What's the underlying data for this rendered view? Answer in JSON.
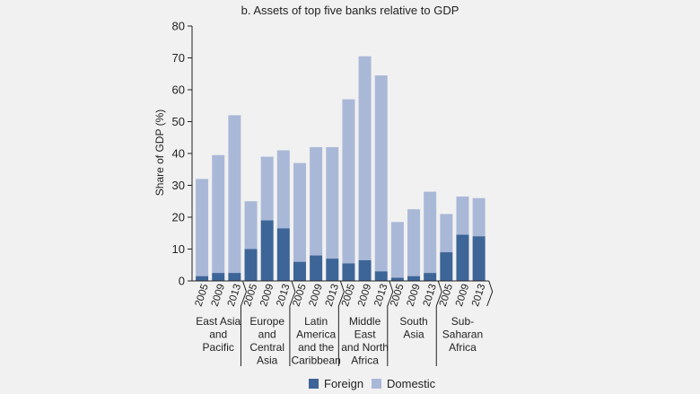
{
  "chart_data": {
    "type": "bar",
    "stacked": true,
    "title": "b. Assets of top five banks relative to GDP",
    "ylabel": "Share of GDP (%)",
    "xlabel": "",
    "ylim": [
      0,
      80
    ],
    "yticks": [
      0,
      10,
      20,
      30,
      40,
      50,
      60,
      70,
      80
    ],
    "grid": false,
    "legend_position": "bottom-center",
    "colors": {
      "foreign": "#3d6597",
      "domestic": "#aab8d8",
      "axis": "#222222"
    },
    "groups": [
      {
        "label_lines": [
          "East Asia",
          "and",
          "Pacific"
        ],
        "years": [
          "2005",
          "2009",
          "2013"
        ],
        "foreign": [
          1.5,
          2.5,
          2.5
        ],
        "total": [
          32,
          39.5,
          52
        ]
      },
      {
        "label_lines": [
          "Europe",
          "and",
          "Central",
          "Asia"
        ],
        "years": [
          "2005",
          "2009",
          "2013"
        ],
        "foreign": [
          10,
          19,
          16.5
        ],
        "total": [
          25,
          39,
          41
        ]
      },
      {
        "label_lines": [
          "Latin",
          "America",
          "and the",
          "Caribbean"
        ],
        "years": [
          "2005",
          "2009",
          "2013"
        ],
        "foreign": [
          6,
          8,
          7
        ],
        "total": [
          37,
          42,
          42
        ]
      },
      {
        "label_lines": [
          "Middle",
          "East",
          "and North",
          "Africa"
        ],
        "years": [
          "2005",
          "2009",
          "2013"
        ],
        "foreign": [
          5.5,
          6.5,
          3
        ],
        "total": [
          57,
          70.5,
          64.5
        ]
      },
      {
        "label_lines": [
          "South",
          "Asia"
        ],
        "years": [
          "2005",
          "2009",
          "2013"
        ],
        "foreign": [
          1,
          1.5,
          2.5
        ],
        "total": [
          18.5,
          22.5,
          28
        ]
      },
      {
        "label_lines": [
          "Sub-",
          "Saharan",
          "Africa"
        ],
        "years": [
          "2005",
          "2009",
          "2013"
        ],
        "foreign": [
          9,
          14.5,
          14
        ],
        "total": [
          21,
          26.5,
          26
        ]
      }
    ],
    "series": [
      {
        "name": "Foreign"
      },
      {
        "name": "Domestic"
      }
    ]
  }
}
